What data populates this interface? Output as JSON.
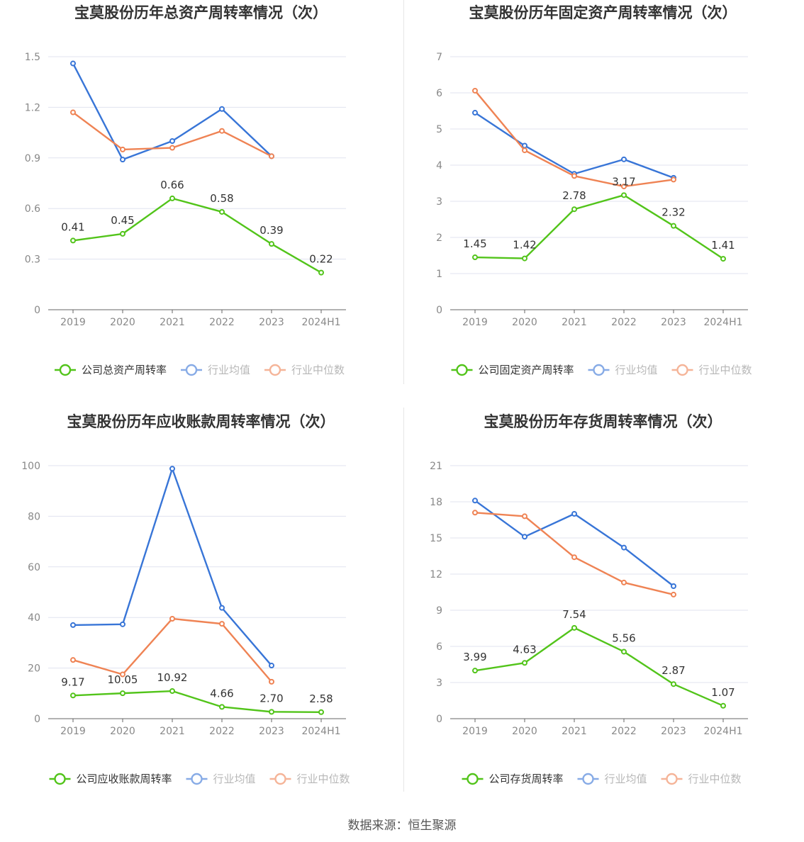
{
  "source_label": "数据来源：恒生聚源",
  "colors": {
    "company": "#52c41a",
    "avg": "#3875d7",
    "median": "#ef8354",
    "grid": "#e0e3ef",
    "axis": "#666666",
    "text": "#333333"
  },
  "legend": {
    "avg": "行业均值",
    "median": "行业中位数"
  },
  "chart_data": [
    {
      "type": "line",
      "title": "宝莫股份历年总资产周转率情况（次）",
      "categories": [
        "2019",
        "2020",
        "2021",
        "2022",
        "2023",
        "2024H1"
      ],
      "yticks": [
        "0",
        "0.3",
        "0.6",
        "0.9",
        "1.2",
        "1.5"
      ],
      "ylim": [
        0,
        1.5
      ],
      "series": [
        {
          "name": "公司总资产周转率",
          "key": "company",
          "values": [
            0.41,
            0.45,
            0.66,
            0.58,
            0.39,
            0.22
          ],
          "labels": [
            "0.41",
            "0.45",
            "0.66",
            "0.58",
            "0.39",
            "0.22"
          ]
        },
        {
          "name": "行业均值",
          "key": "avg",
          "values": [
            1.46,
            0.89,
            1.0,
            1.19,
            0.91,
            null
          ]
        },
        {
          "name": "行业中位数",
          "key": "median",
          "values": [
            1.17,
            0.95,
            0.96,
            1.06,
            0.91,
            null
          ]
        }
      ]
    },
    {
      "type": "line",
      "title": "宝莫股份历年固定资产周转率情况（次）",
      "categories": [
        "2019",
        "2020",
        "2021",
        "2022",
        "2023",
        "2024H1"
      ],
      "yticks": [
        "0",
        "1",
        "2",
        "3",
        "4",
        "5",
        "6",
        "7"
      ],
      "ylim": [
        0,
        7
      ],
      "series": [
        {
          "name": "公司固定资产周转率",
          "key": "company",
          "values": [
            1.45,
            1.42,
            2.78,
            3.17,
            2.32,
            1.41
          ],
          "labels": [
            "1.45",
            "1.42",
            "2.78",
            "3.17",
            "2.32",
            "1.41"
          ]
        },
        {
          "name": "行业均值",
          "key": "avg",
          "values": [
            5.45,
            4.54,
            3.76,
            4.16,
            3.65,
            null
          ]
        },
        {
          "name": "行业中位数",
          "key": "median",
          "values": [
            6.06,
            4.41,
            3.7,
            3.41,
            3.6,
            null
          ]
        }
      ]
    },
    {
      "type": "line",
      "title": "宝莫股份历年应收账款周转率情况（次）",
      "categories": [
        "2019",
        "2020",
        "2021",
        "2022",
        "2023",
        "2024H1"
      ],
      "yticks": [
        "0",
        "20",
        "40",
        "60",
        "80",
        "100"
      ],
      "ylim": [
        0,
        100
      ],
      "series": [
        {
          "name": "公司应收账款周转率",
          "key": "company",
          "values": [
            9.17,
            10.05,
            10.92,
            4.66,
            2.7,
            2.58
          ],
          "labels": [
            "9.17",
            "10.05",
            "10.92",
            "4.66",
            "2.70",
            "2.58"
          ]
        },
        {
          "name": "行业均值",
          "key": "avg",
          "values": [
            37.0,
            37.3,
            98.8,
            43.8,
            21.0,
            null
          ]
        },
        {
          "name": "行业中位数",
          "key": "median",
          "values": [
            23.2,
            17.5,
            39.5,
            37.5,
            14.6,
            null
          ]
        }
      ]
    },
    {
      "type": "line",
      "title": "宝莫股份历年存货周转率情况（次）",
      "categories": [
        "2019",
        "2020",
        "2021",
        "2022",
        "2023",
        "2024H1"
      ],
      "yticks": [
        "0",
        "3",
        "6",
        "9",
        "12",
        "15",
        "18",
        "21"
      ],
      "ylim": [
        0,
        21
      ],
      "series": [
        {
          "name": "公司存货周转率",
          "key": "company",
          "values": [
            3.99,
            4.63,
            7.54,
            5.56,
            2.87,
            1.07
          ],
          "labels": [
            "3.99",
            "4.63",
            "7.54",
            "5.56",
            "2.87",
            "1.07"
          ]
        },
        {
          "name": "行业均值",
          "key": "avg",
          "values": [
            18.1,
            15.1,
            17.0,
            14.2,
            11.0,
            null
          ]
        },
        {
          "name": "行业中位数",
          "key": "median",
          "values": [
            17.1,
            16.8,
            13.4,
            11.3,
            10.3,
            null
          ]
        }
      ]
    }
  ]
}
